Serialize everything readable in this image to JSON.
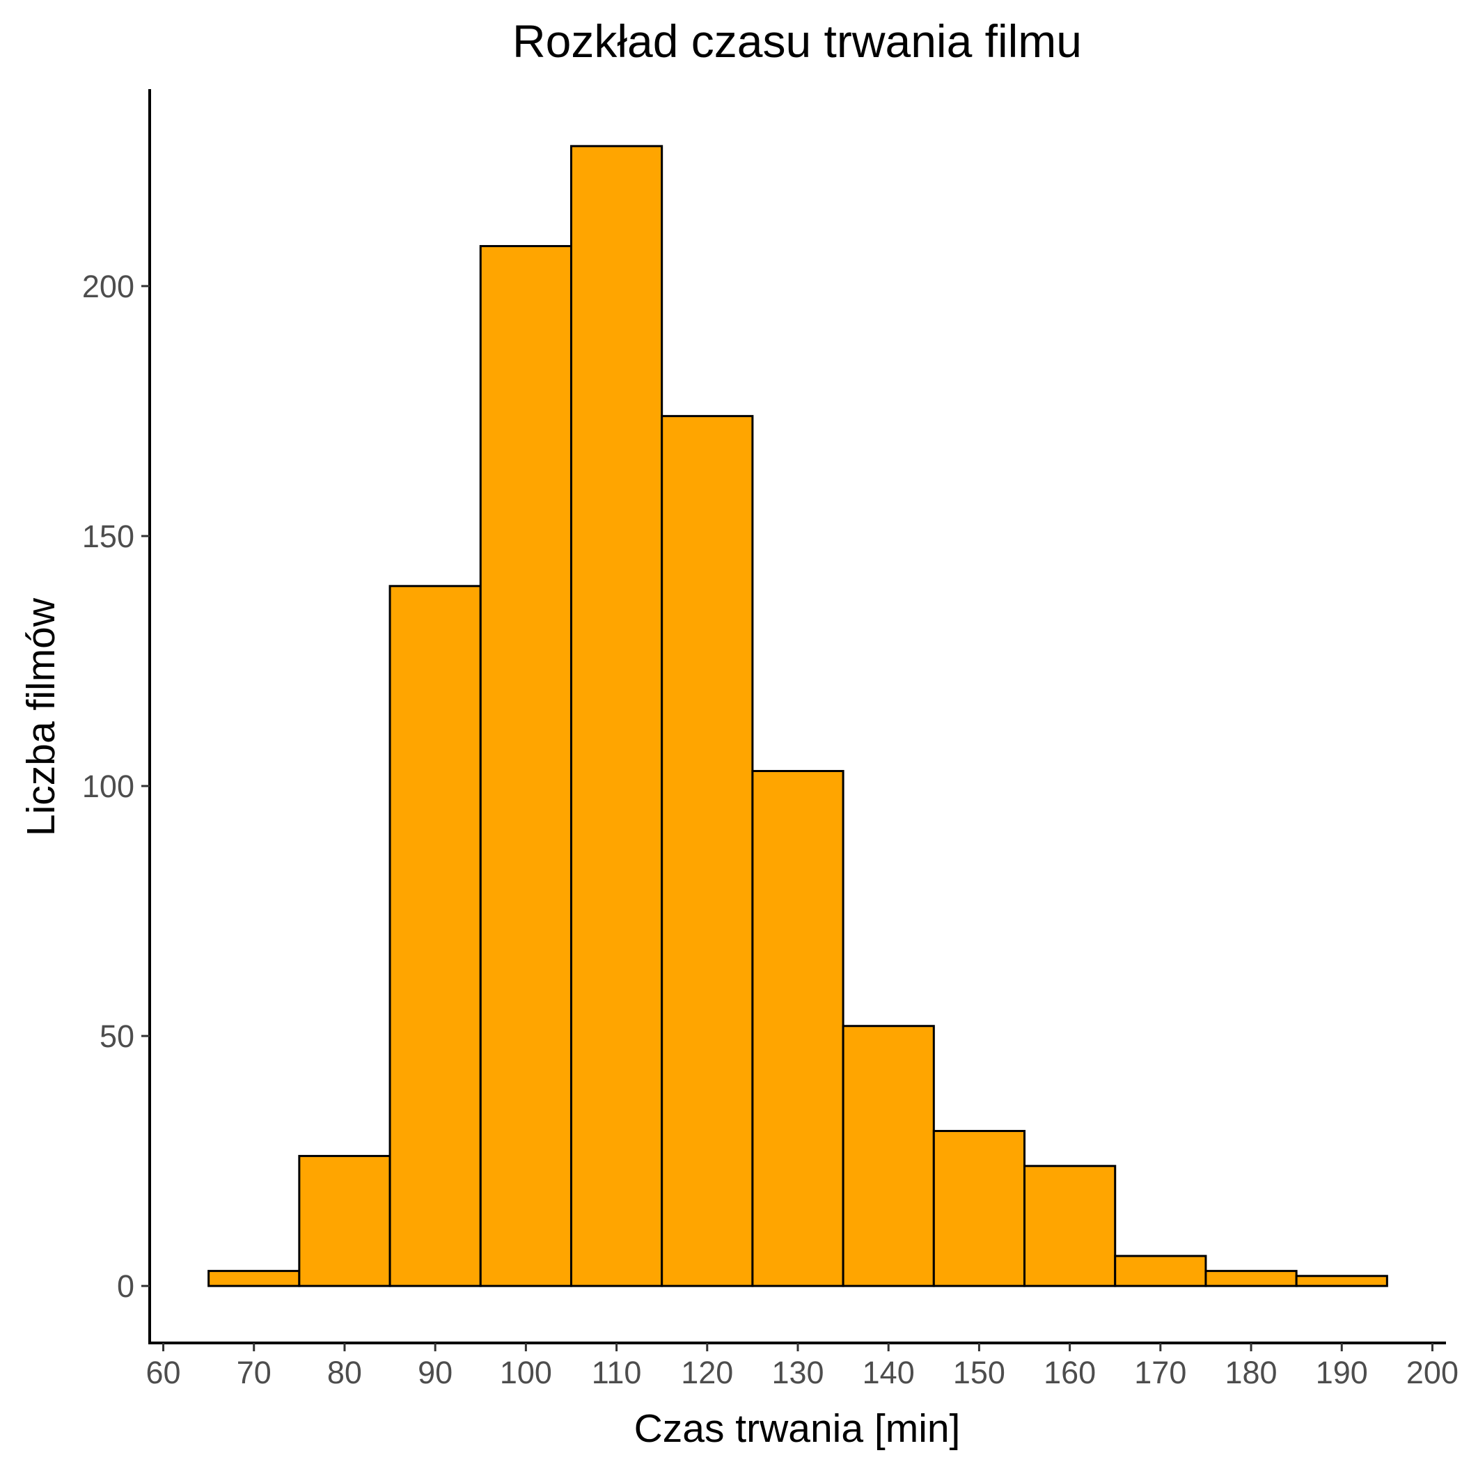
{
  "chart_data": {
    "type": "bar",
    "subtype": "histogram",
    "title": "Rozkład czasu trwania filmu",
    "xlabel": "Czas trwania [min]",
    "ylabel": "Liczba filmów",
    "bin_width": 10,
    "bins": [
      {
        "from": 65,
        "to": 75,
        "count": 3
      },
      {
        "from": 75,
        "to": 85,
        "count": 26
      },
      {
        "from": 85,
        "to": 95,
        "count": 140
      },
      {
        "from": 95,
        "to": 105,
        "count": 208
      },
      {
        "from": 105,
        "to": 115,
        "count": 228
      },
      {
        "from": 115,
        "to": 125,
        "count": 174
      },
      {
        "from": 125,
        "to": 135,
        "count": 103
      },
      {
        "from": 135,
        "to": 145,
        "count": 52
      },
      {
        "from": 145,
        "to": 155,
        "count": 31
      },
      {
        "from": 155,
        "to": 165,
        "count": 24
      },
      {
        "from": 165,
        "to": 175,
        "count": 6
      },
      {
        "from": 175,
        "to": 185,
        "count": 3
      },
      {
        "from": 185,
        "to": 195,
        "count": 2
      }
    ],
    "xlim": [
      58.5,
      201.5
    ],
    "ylim": [
      -11.4,
      239.4
    ],
    "x_ticks": [
      60,
      70,
      80,
      90,
      100,
      110,
      120,
      130,
      140,
      150,
      160,
      170,
      180,
      190,
      200
    ],
    "y_ticks": [
      0,
      50,
      100,
      150,
      200
    ],
    "grid": false,
    "fill_color": "#FFA500",
    "edge_color": "#000000"
  }
}
